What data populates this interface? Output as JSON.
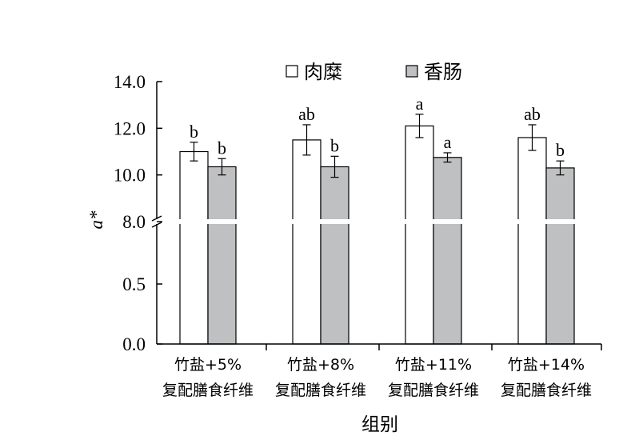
{
  "chart_data": {
    "type": "bar",
    "xlabel": "组别",
    "ylabel": "a*",
    "axis_break": true,
    "ylim_lower": [
      0.0,
      1.0
    ],
    "ylim_upper": [
      8.0,
      14.0
    ],
    "yticks_lower": [
      "0.0",
      "0.5"
    ],
    "yticks_upper": [
      "8.0",
      "10.0",
      "12.0",
      "14.0"
    ],
    "categories": [
      [
        "竹盐+5%",
        "复配膳食纤维"
      ],
      [
        "竹盐+8%",
        "复配膳食纤维"
      ],
      [
        "竹盐+11%",
        "复配膳食纤维"
      ],
      [
        "竹盐+14%",
        "复配膳食纤维"
      ]
    ],
    "series": [
      {
        "name": "肉糜",
        "color": "#ffffff",
        "values": [
          11.0,
          11.5,
          12.1,
          11.6
        ],
        "errors": [
          0.4,
          0.65,
          0.5,
          0.55
        ],
        "labels": [
          "b",
          "ab",
          "a",
          "ab"
        ]
      },
      {
        "name": "香肠",
        "color": "#bfc0c2",
        "values": [
          10.35,
          10.35,
          10.75,
          10.3
        ],
        "errors": [
          0.35,
          0.45,
          0.2,
          0.3
        ],
        "labels": [
          "b",
          "b",
          "a",
          "b"
        ]
      }
    ],
    "legend_position": "top"
  }
}
